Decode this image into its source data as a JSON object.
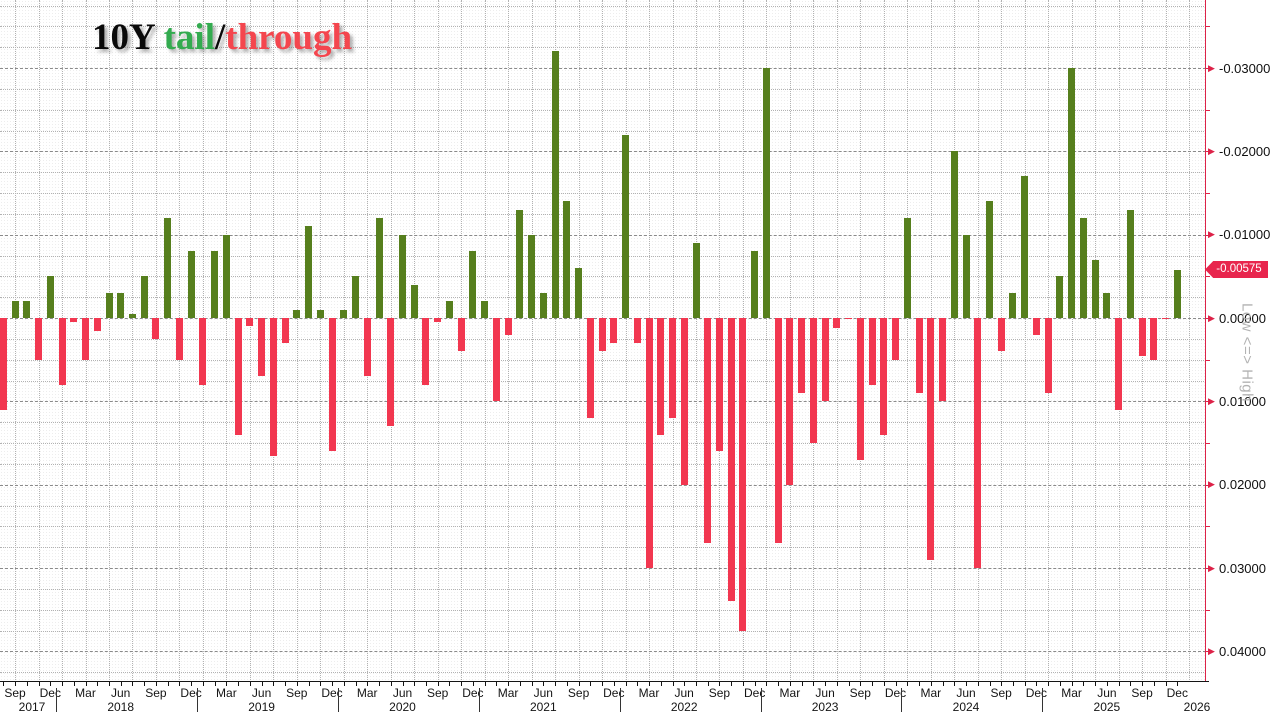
{
  "title": {
    "instrument": "10Y ",
    "word_green": "tail",
    "slash": "/",
    "word_red": "through"
  },
  "colors": {
    "bar_negative_green": "#567f1d",
    "bar_positive_red": "#f23750",
    "axis_red": "#dd2248",
    "badge_bg": "#e8254d",
    "title_green": "#33ab4f",
    "title_red": "#f4464e"
  },
  "y_axis": {
    "tick_labels": [
      "-0.03000",
      "-0.02000",
      "-0.01000",
      "0.00000",
      "0.01000",
      "0.02000",
      "0.03000",
      "0.04000"
    ],
    "tick_values": [
      -0.03,
      -0.02,
      -0.01,
      0,
      0.01,
      0.02,
      0.03,
      0.04
    ],
    "minor_tick_values": [
      -0.035,
      -0.025,
      -0.015,
      -0.005,
      0.005,
      0.015,
      0.025,
      0.035
    ],
    "last_value_label": "-0.00575",
    "last_value": -0.00575,
    "side_label": "Low <=> High",
    "inverted": true
  },
  "x_axis": {
    "years": [
      "2017",
      "2018",
      "2019",
      "2020",
      "2021",
      "2022",
      "2023",
      "2024",
      "2025",
      "2026"
    ]
  },
  "chart_data": {
    "type": "bar",
    "title": "10Y tail/through",
    "ylabel": "",
    "xlabel": "",
    "ylim": [
      -0.0382,
      0.0435
    ],
    "y_inverted": true,
    "grid": true,
    "x": [
      "Aug 2017",
      "Sep 2017",
      "Oct 2017",
      "Nov 2017",
      "Dec 2017",
      "Jan 2018",
      "Feb 2018",
      "Mar 2018",
      "Apr 2018",
      "May 2018",
      "Jun 2018",
      "Jul 2018",
      "Aug 2018",
      "Sep 2018",
      "Oct 2018",
      "Nov 2018",
      "Dec 2018",
      "Jan 2019",
      "Feb 2019",
      "Mar 2019",
      "Apr 2019",
      "May 2019",
      "Jun 2019",
      "Jul 2019",
      "Aug 2019",
      "Sep 2019",
      "Oct 2019",
      "Nov 2019",
      "Dec 2019",
      "Jan 2020",
      "Feb 2020",
      "Mar 2020",
      "Apr 2020",
      "May 2020",
      "Jun 2020",
      "Jul 2020",
      "Aug 2020",
      "Sep 2020",
      "Oct 2020",
      "Nov 2020",
      "Dec 2020",
      "Jan 2021",
      "Feb 2021",
      "Mar 2021",
      "Apr 2021",
      "May 2021",
      "Jun 2021",
      "Jul 2021",
      "Aug 2021",
      "Sep 2021",
      "Oct 2021",
      "Nov 2021",
      "Dec 2021",
      "Jan 2022",
      "Feb 2022",
      "Mar 2022",
      "Apr 2022",
      "May 2022",
      "Jun 2022",
      "Jul 2022",
      "Aug 2022",
      "Sep 2022",
      "Oct 2022",
      "Nov 2022",
      "Dec 2022",
      "Jan 2023",
      "Feb 2023",
      "Mar 2023",
      "Apr 2023",
      "May 2023",
      "Jun 2023",
      "Jul 2023",
      "Aug 2023",
      "Sep 2023",
      "Oct 2023",
      "Nov 2023",
      "Dec 2023",
      "Jan 2024",
      "Feb 2024",
      "Mar 2024",
      "Apr 2024",
      "May 2024",
      "Jun 2024",
      "Jul 2024",
      "Aug 2024",
      "Sep 2024",
      "Oct 2024",
      "Nov 2024",
      "Dec 2024",
      "Jan 2025",
      "Feb 2025",
      "Mar 2025",
      "Apr 2025",
      "May 2025",
      "Jun 2025",
      "Jul 2025",
      "Aug 2025",
      "Sep 2025",
      "Oct 2025",
      "Nov 2025",
      "Dec 2025"
    ],
    "values": [
      0.011,
      -0.002,
      -0.002,
      0.005,
      -0.005,
      0.008,
      0.0005,
      0.005,
      0.0015,
      -0.003,
      -0.003,
      -0.0005,
      -0.005,
      0.0025,
      -0.012,
      0.005,
      -0.008,
      0.008,
      -0.008,
      -0.01,
      0.014,
      0.001,
      0.007,
      0.0165,
      0.003,
      -0.001,
      -0.011,
      -0.001,
      0.016,
      -0.001,
      -0.005,
      0.007,
      -0.012,
      0.013,
      -0.01,
      -0.004,
      0.008,
      0.0005,
      -0.002,
      0.004,
      -0.008,
      -0.002,
      0.01,
      0.002,
      -0.013,
      -0.01,
      -0.003,
      -0.032,
      -0.014,
      -0.006,
      0.012,
      0.004,
      0.003,
      -0.022,
      0.003,
      0.03,
      0.014,
      0.012,
      0.02,
      -0.009,
      0.027,
      0.016,
      0.034,
      0.0375,
      -0.008,
      -0.03,
      0.027,
      0.02,
      0.009,
      0.015,
      0.01,
      0.0012,
      0.0,
      0.017,
      0.008,
      0.014,
      0.005,
      -0.012,
      0.009,
      0.029,
      0.01,
      -0.02,
      -0.01,
      0.03,
      -0.014,
      0.004,
      -0.003,
      -0.017,
      0.002,
      0.009,
      -0.005,
      -0.03,
      -0.012,
      -0.007,
      -0.003,
      0.011,
      -0.013,
      0.0045,
      0.005,
      0.0,
      -0.00575
    ],
    "legend": [],
    "notes": "green = stop-through (negative, axis inverted up), red = tail (positive, down)"
  }
}
